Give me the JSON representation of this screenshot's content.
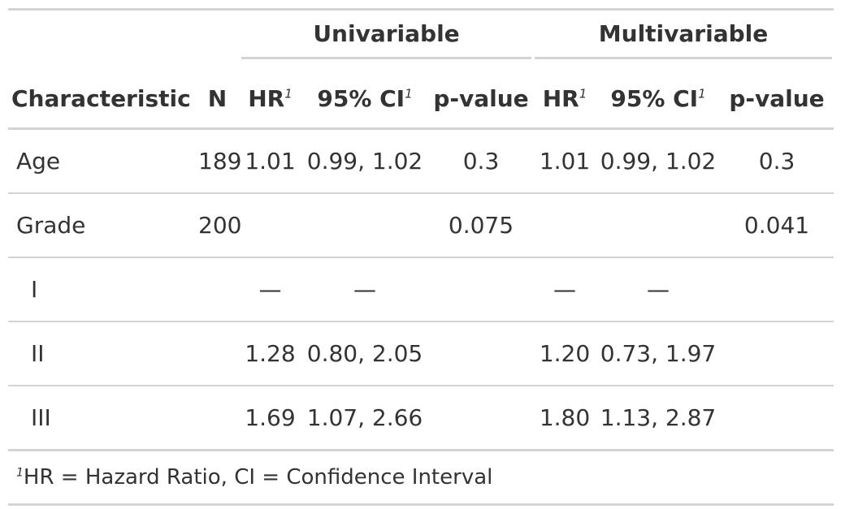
{
  "table": {
    "spanners": {
      "univariable": "Univariable",
      "multivariable": "Multivariable"
    },
    "columns": {
      "characteristic": "Characteristic",
      "n": "N",
      "hr": "HR",
      "ci": "95% CI",
      "p_value": "p-value",
      "footnote_marker": "1"
    },
    "rows": [
      {
        "label": "Age",
        "n": "189",
        "u_hr": "1.01",
        "u_ci": "0.99, 1.02",
        "u_p": "0.3",
        "m_hr": "1.01",
        "m_ci": "0.99, 1.02",
        "m_p": "0.3"
      },
      {
        "label": "Grade",
        "n": "200",
        "u_hr": "",
        "u_ci": "",
        "u_p": "0.075",
        "m_hr": "",
        "m_ci": "",
        "m_p": "0.041"
      },
      {
        "label": "I",
        "n": "",
        "u_hr": "—",
        "u_ci": "—",
        "u_p": "",
        "m_hr": "—",
        "m_ci": "—",
        "m_p": ""
      },
      {
        "label": "II",
        "n": "",
        "u_hr": "1.28",
        "u_ci": "0.80, 2.05",
        "u_p": "",
        "m_hr": "1.20",
        "m_ci": "0.73, 1.97",
        "m_p": ""
      },
      {
        "label": "III",
        "n": "",
        "u_hr": "1.69",
        "u_ci": "1.07, 2.66",
        "u_p": "",
        "m_hr": "1.80",
        "m_ci": "1.13, 2.87",
        "m_p": ""
      }
    ],
    "footnote": {
      "marker": "1",
      "text": "HR = Hazard Ratio, CI = Confidence Interval"
    }
  }
}
